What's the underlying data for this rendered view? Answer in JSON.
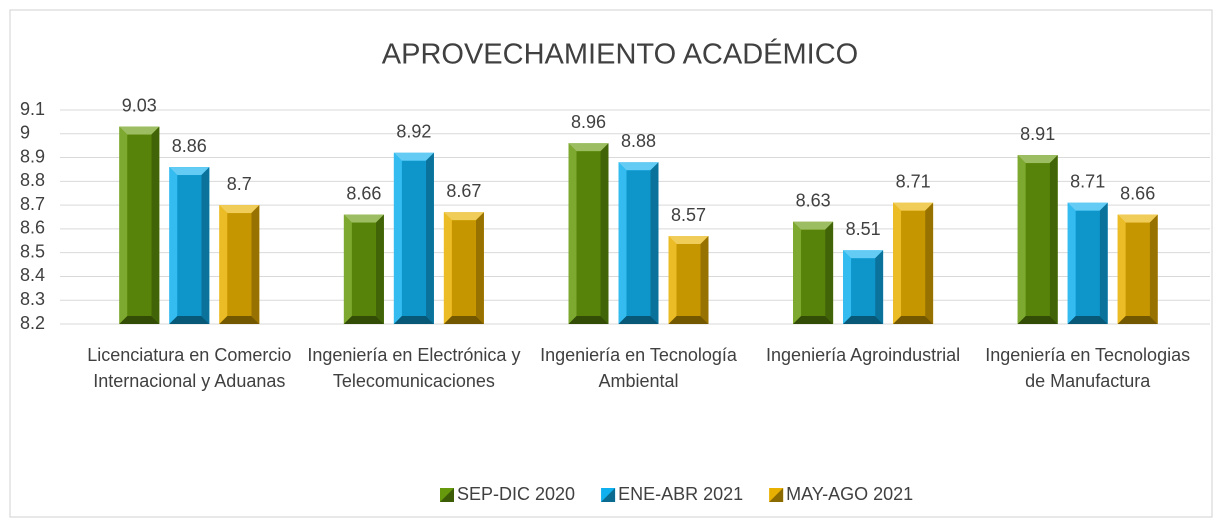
{
  "chart_data": {
    "type": "bar",
    "title": "APROVECHAMIENTO ACADÉMICO",
    "categories": [
      "Licenciatura en Comercio Internacional y Aduanas",
      "Ingeniería en Electrónica y Telecomunicaciones",
      "Ingeniería en Tecnología Ambiental",
      "Ingeniería Agroindustrial",
      "Ingeniería en Tecnologias de Manufactura"
    ],
    "series": [
      {
        "name": "SEP-DIC 2020",
        "color": "#669a0c",
        "values": [
          9.03,
          8.66,
          8.96,
          8.63,
          8.91
        ]
      },
      {
        "name": "ENE-ABR 2021",
        "color": "#10b0ee",
        "values": [
          8.86,
          8.92,
          8.88,
          8.51,
          8.71
        ]
      },
      {
        "name": "MAY-AGO 2021",
        "color": "#e8b000",
        "values": [
          8.7,
          8.67,
          8.57,
          8.71,
          8.66
        ]
      }
    ],
    "ylim": [
      8.2,
      9.1
    ],
    "yticks": [
      8.2,
      8.3,
      8.4,
      8.5,
      8.6,
      8.7,
      8.8,
      8.9,
      9,
      9.1
    ],
    "grid": true,
    "legend": "bottom"
  }
}
